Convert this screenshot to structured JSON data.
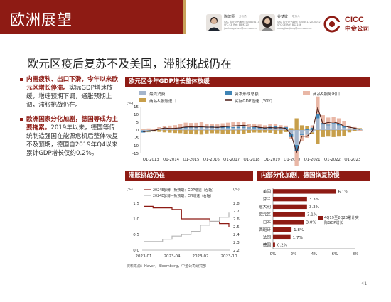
{
  "header": {
    "title": "欧洲展望",
    "people": [
      {
        "name": "陈健恒",
        "role": "分析员",
        "lines": [
          "SAC 执业证书编号: S0080511030011",
          "SFC CE Ref: BBM220",
          "jianheng.chen@cicc.com.cn"
        ]
      },
      {
        "name": "姜梦姣",
        "role": "联系人",
        "lines": [
          "SAC 执业证书编号: S0080122070052",
          "SFC CE Ref: BSX166",
          "mengjiao.jiang@cicc.com.cn"
        ]
      }
    ],
    "logo_text": "CICC",
    "logo_sub": "中金公司"
  },
  "main_title": "欧元区疫后复苏不及美国，滞胀挑战仍在",
  "bullets": [
    {
      "bold": "内需疲软、出口下滑，今年以来欧元区增长停滞。",
      "text": "实际GDP增速放缓，增速预期下调，通胀预期上调，滞胀挑战仍在。"
    },
    {
      "bold": "欧洲国家分化加剧，德国等成为主要拖累。",
      "text": "2019年以来，德国等传统制造强国在能源危机后整体恢复不及预期，德国自2019年Q4以来累计GDP增长仅约0.2%。"
    }
  ],
  "source": "资料来源：Haver，Bloomberg，中金公司研究部",
  "page_number": "41",
  "colors": {
    "brand": "#8e1b14",
    "gold": "#c8a25a"
  },
  "gdp_chart": {
    "title": "欧元区今年GDP增长整体放缓",
    "legend": [
      {
        "label": "最终消费",
        "color": "#a4b5cc"
      },
      {
        "label": "资本形成总额",
        "color": "#3f84b5"
      },
      {
        "label": "商品&服务出口",
        "color": "#e9b7a6"
      },
      {
        "label": "商品&服务进口",
        "color": "#c79f4b"
      },
      {
        "label": "实际GDP增速（YOY）",
        "color": "#4a1a14"
      }
    ]
  },
  "stag_chart": {
    "title": "滞胀挑战仍在",
    "unit_left": "(%)",
    "unit_right": "(%)",
    "legend": [
      {
        "label": "2024E彭博一致预期：GDP增速（左轴）",
        "color": "#8e1b14"
      },
      {
        "label": "2024E彭博一致预期：CPI增速（右轴）",
        "color": "#b5b5b5"
      }
    ]
  },
  "div_chart": {
    "title": "内部分化加剧，德国恢复较慢",
    "legend_label": "4Q19至2Q23累计实际GDP增长"
  },
  "chart_data": [
    {
      "type": "bar",
      "title": "欧元区今年GDP增长整体放缓",
      "ylabel": "(%)",
      "ylim": [
        -15,
        15
      ],
      "yticks": [
        -15,
        -10,
        -5,
        0,
        5,
        10,
        15
      ],
      "xticklabels": [
        "Q1-2013",
        "Q1-2014",
        "Q1-2015",
        "Q1-2016",
        "Q1-2017",
        "Q1-2018",
        "Q1-2019",
        "Q1-2020",
        "Q1-2021",
        "Q1-2022",
        "Q1-2023"
      ],
      "x": [
        "2013Q1",
        "2013Q2",
        "2013Q3",
        "2013Q4",
        "2014Q1",
        "2014Q2",
        "2014Q3",
        "2014Q4",
        "2015Q1",
        "2015Q2",
        "2015Q3",
        "2015Q4",
        "2016Q1",
        "2016Q2",
        "2016Q3",
        "2016Q4",
        "2017Q1",
        "2017Q2",
        "2017Q3",
        "2017Q4",
        "2018Q1",
        "2018Q2",
        "2018Q3",
        "2018Q4",
        "2019Q1",
        "2019Q2",
        "2019Q3",
        "2019Q4",
        "2020Q1",
        "2020Q2",
        "2020Q3",
        "2020Q4",
        "2021Q1",
        "2021Q2",
        "2021Q3",
        "2021Q4",
        "2022Q1",
        "2022Q2",
        "2022Q3",
        "2022Q4",
        "2023Q1",
        "2023Q2"
      ],
      "series": [
        {
          "name": "最终消费",
          "values": [
            -0.4,
            -0.3,
            0.0,
            0.3,
            0.6,
            0.8,
            0.9,
            1.0,
            1.2,
            1.3,
            1.4,
            1.5,
            1.5,
            1.4,
            1.3,
            1.3,
            1.2,
            1.3,
            1.3,
            1.4,
            1.2,
            1.1,
            1.0,
            0.9,
            0.9,
            1.0,
            1.0,
            0.8,
            -2.5,
            -9.5,
            -2.8,
            -3.0,
            -1.5,
            7.5,
            3.5,
            3.0,
            4.0,
            3.0,
            1.5,
            0.5,
            0.3,
            0.4
          ]
        },
        {
          "name": "资本形成总额",
          "values": [
            -1.2,
            -0.8,
            -0.2,
            0.2,
            0.5,
            0.3,
            0.2,
            0.5,
            0.8,
            0.4,
            0.6,
            0.9,
            0.7,
            1.0,
            0.8,
            1.2,
            0.9,
            0.6,
            0.8,
            0.7,
            0.5,
            0.7,
            0.9,
            0.6,
            1.2,
            1.5,
            0.4,
            1.0,
            -2.0,
            -4.0,
            -0.5,
            0.5,
            1.5,
            3.0,
            1.0,
            0.5,
            0.5,
            1.0,
            1.2,
            0.5,
            0.6,
            0.3
          ]
        },
        {
          "name": "商品&服务出口",
          "values": [
            0.4,
            1.0,
            0.8,
            1.3,
            1.6,
            1.7,
            2.0,
            2.2,
            2.7,
            2.8,
            2.6,
            2.7,
            1.6,
            1.5,
            1.5,
            1.8,
            2.6,
            3.3,
            3.1,
            3.2,
            2.4,
            2.0,
            1.6,
            1.5,
            1.8,
            1.4,
            1.7,
            1.0,
            -1.3,
            -9.5,
            -3.5,
            -2.0,
            1.5,
            11.0,
            5.0,
            4.5,
            4.0,
            3.5,
            3.2,
            1.8,
            1.0,
            -0.6
          ]
        },
        {
          "name": "商品&服务进口",
          "values": [
            0.3,
            -0.3,
            -0.8,
            -1.2,
            -1.5,
            -1.7,
            -1.9,
            -2.0,
            -2.4,
            -2.6,
            -2.8,
            -2.9,
            -2.2,
            -2.0,
            -2.1,
            -2.3,
            -2.4,
            -2.6,
            -2.3,
            -2.6,
            -1.8,
            -1.6,
            -1.7,
            -1.6,
            -1.8,
            -2.4,
            -2.2,
            -1.3,
            1.2,
            7.5,
            3.0,
            2.0,
            -1.2,
            -9.0,
            -4.5,
            -4.2,
            -4.5,
            -4.2,
            -4.0,
            -1.5,
            -0.7,
            0.5
          ]
        },
        {
          "name": "实际GDP增速（YOY）",
          "values": [
            -1.1,
            -0.6,
            -0.3,
            0.6,
            1.3,
            1.0,
            1.1,
            1.4,
            1.9,
            2.0,
            1.9,
            2.1,
            1.8,
            1.8,
            1.7,
            2.0,
            2.3,
            2.6,
            2.8,
            3.0,
            2.5,
            2.2,
            1.7,
            1.3,
            1.6,
            1.3,
            1.5,
            1.0,
            -3.0,
            -14.3,
            -3.9,
            -4.0,
            -0.7,
            14.1,
            4.0,
            4.8,
            5.2,
            4.2,
            2.5,
            1.8,
            1.2,
            0.5
          ]
        }
      ]
    },
    {
      "type": "line",
      "title": "滞胀挑战仍在",
      "x": [
        "2023-01",
        "2023-02",
        "2023-03",
        "2023-04",
        "2023-05",
        "2023-06",
        "2023-07",
        "2023-08",
        "2023-09",
        "2023-10"
      ],
      "xticklabels": [
        "2023-01",
        "2023-04",
        "2023-07",
        "2023-10"
      ],
      "y_left": {
        "label": "(%)",
        "lim": [
          0.0,
          1.5
        ],
        "ticks": [
          0.0,
          0.5,
          1.0,
          1.5
        ]
      },
      "y_right": {
        "label": "(%)",
        "lim": [
          2.2,
          2.8
        ],
        "ticks": [
          2.2,
          2.3,
          2.4,
          2.5,
          2.6,
          2.7,
          2.8
        ]
      },
      "series": [
        {
          "name": "2024E彭博一致预期：GDP增速（左轴）",
          "axis": "left",
          "values": [
            1.4,
            1.35,
            1.35,
            1.3,
            1.0,
            1.0,
            1.0,
            0.9,
            0.85,
            0.75
          ]
        },
        {
          "name": "2024E彭博一致预期：CPI增速（右轴）",
          "axis": "right",
          "values": [
            2.31,
            2.31,
            2.34,
            2.38,
            2.4,
            2.44,
            2.52,
            2.57,
            2.62,
            2.68
          ]
        }
      ]
    },
    {
      "type": "bar",
      "orientation": "horizontal",
      "title": "内部分化加剧，德国恢复较慢",
      "categories": [
        "美国",
        "芬兰",
        "意大利",
        "欧元区",
        "日本",
        "西班牙",
        "法国",
        "德国"
      ],
      "values": [
        6.1,
        3.3,
        3.3,
        3.1,
        3.0,
        1.8,
        1.7,
        0.2
      ],
      "value_labels": [
        "6.1%",
        "3.3%",
        "3.3%",
        "3.1%",
        "3.0%",
        "1.8%",
        "1.7%",
        "0.2%"
      ],
      "xlim": [
        0,
        8
      ],
      "xticklabels": [
        "0%",
        "2%",
        "4%",
        "6%",
        "8%"
      ],
      "series_name": "4Q19至2Q23累计实际GDP增长"
    }
  ]
}
